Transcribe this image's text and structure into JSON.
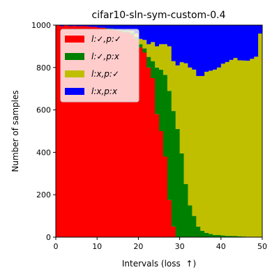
{
  "chart_data": {
    "type": "bar",
    "stacked": true,
    "title": "cifar10-sln-sym-custom-0.4",
    "xlabel": "Intervals (loss  ↑)",
    "ylabel": "Number of samples",
    "xlim": [
      0,
      50
    ],
    "ylim": [
      0,
      1000
    ],
    "xticks": [
      "0",
      "10",
      "20",
      "30",
      "40",
      "50"
    ],
    "yticks": [
      "0",
      "200",
      "400",
      "600",
      "800",
      "1000"
    ],
    "legend_position": "top-left",
    "grid": false,
    "x": [
      0,
      1,
      2,
      3,
      4,
      5,
      6,
      7,
      8,
      9,
      10,
      11,
      12,
      13,
      14,
      15,
      16,
      17,
      18,
      19,
      20,
      21,
      22,
      23,
      24,
      25,
      26,
      27,
      28,
      29,
      30,
      31,
      32,
      33,
      34,
      35,
      36,
      37,
      38,
      39,
      40,
      41,
      42,
      43,
      44,
      45,
      46,
      47,
      48,
      49
    ],
    "series": [
      {
        "name": "l:✓,p:✓",
        "color": "#ff0000",
        "values": [
          999,
          995,
          998,
          995,
          996,
          995,
          995,
          995,
          992,
          992,
          988,
          987,
          983,
          982,
          975,
          972,
          965,
          965,
          955,
          935,
          895,
          870,
          800,
          750,
          580,
          500,
          380,
          175,
          50,
          0,
          0,
          0,
          0,
          0,
          0,
          0,
          0,
          0,
          0,
          0,
          0,
          0,
          0,
          0,
          0,
          0,
          0,
          0,
          0,
          0
        ]
      },
      {
        "name": "l:✓,p:x",
        "color": "#008000",
        "values": [
          0,
          0,
          0,
          0,
          0,
          0,
          0,
          0,
          0,
          0,
          0,
          1,
          2,
          2,
          3,
          3,
          5,
          5,
          8,
          10,
          15,
          20,
          50,
          80,
          220,
          290,
          385,
          515,
          545,
          510,
          395,
          250,
          150,
          100,
          50,
          30,
          20,
          15,
          10,
          10,
          8,
          6,
          6,
          5,
          4,
          3,
          2,
          1,
          1,
          0
        ]
      },
      {
        "name": "l:x,p:✓",
        "color": "#bfbf00",
        "values": [
          0,
          0,
          0,
          0,
          0,
          0,
          0,
          0,
          0,
          0,
          0,
          0,
          0,
          0,
          0,
          2,
          4,
          5,
          10,
          15,
          25,
          40,
          60,
          90,
          100,
          120,
          145,
          210,
          235,
          300,
          430,
          570,
          650,
          690,
          710,
          730,
          760,
          770,
          780,
          790,
          810,
          820,
          830,
          840,
          830,
          830,
          830,
          840,
          850,
          960
        ]
      },
      {
        "name": "l:x,p:x",
        "color": "#0000ff",
        "values": [
          1,
          5,
          2,
          5,
          4,
          5,
          5,
          5,
          8,
          8,
          12,
          12,
          15,
          16,
          22,
          23,
          26,
          25,
          27,
          40,
          65,
          70,
          90,
          80,
          100,
          90,
          90,
          100,
          170,
          190,
          175,
          180,
          200,
          210,
          240,
          240,
          220,
          215,
          210,
          200,
          182,
          174,
          164,
          155,
          166,
          167,
          168,
          159,
          149,
          40
        ]
      }
    ]
  }
}
